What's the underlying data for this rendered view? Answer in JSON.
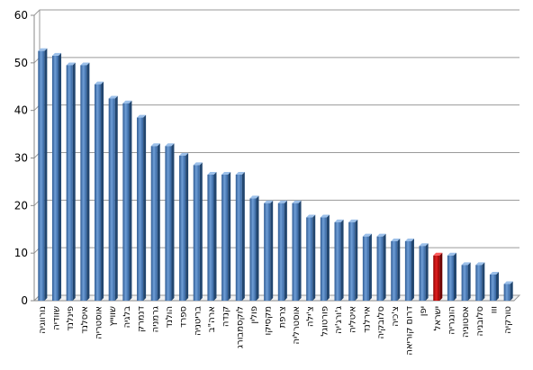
{
  "chart_data": {
    "type": "bar",
    "title": "",
    "xlabel": "",
    "ylabel": "",
    "ylim": [
      0,
      60
    ],
    "yticks": [
      0,
      10,
      20,
      30,
      40,
      50,
      60
    ],
    "grid": true,
    "legend": "none",
    "bar_color": "#4f81bd",
    "highlight_color": "#c00000",
    "highlight_index": 28,
    "categories": [
      "נורווגיה",
      "שוודיה",
      "פינלנד",
      "איסלנד",
      "אוסטריה",
      "שווייץ",
      "בלגיה",
      "דנמרק",
      "גרמניה",
      "הולנד",
      "ספרד",
      "בריטניה",
      "ארה\"ב",
      "קנדה",
      "לוקסמבורג",
      "פולין",
      "מקסיקו",
      "צרפת",
      "אוסטרליה",
      "צ'ילה",
      "פורטוגל",
      "ג'ורג'יה",
      "איטליה",
      "אירלנד",
      "סלובקיה",
      "צ'כיה",
      "דרום קוריאה",
      "יפן",
      "ישראל",
      "הונגריה",
      "אסטוניה",
      "סלובניה",
      "ווו",
      "טורקיה"
    ],
    "values": [
      52.5,
      51.5,
      49.5,
      49.5,
      45.5,
      42.5,
      41.5,
      38.5,
      32.5,
      32.5,
      30.5,
      28.5,
      26.5,
      26.5,
      26.5,
      21.5,
      20.5,
      20.5,
      20.5,
      17.5,
      17.5,
      16.5,
      16.5,
      13.5,
      13.5,
      12.5,
      12.5,
      11.5,
      9.5,
      9.5,
      7.5,
      7.5,
      5.5,
      3.5
    ]
  }
}
